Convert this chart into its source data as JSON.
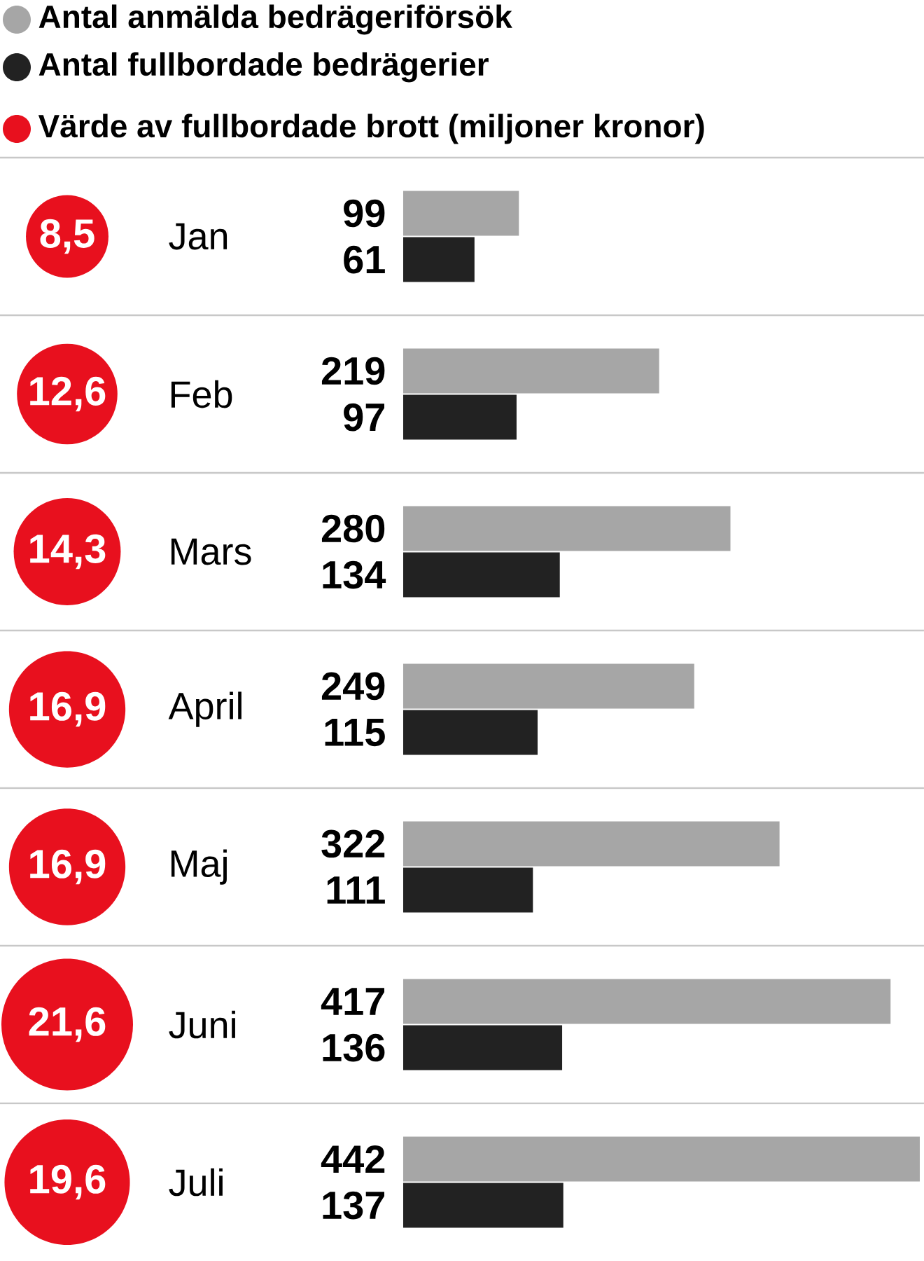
{
  "chart_data": [
    {
      "type": "bar",
      "orientation": "horizontal",
      "legend": "top",
      "data_labels": true,
      "categories": [
        "Jan",
        "Feb",
        "Mars",
        "April",
        "Maj",
        "Juni",
        "Juli"
      ],
      "series": [
        {
          "name": "Antal anmälda bedrägeriförsök",
          "color": "#a6a6a6",
          "values": [
            99,
            219,
            280,
            249,
            322,
            417,
            442
          ]
        },
        {
          "name": "Antal fullbordade bedrägerier",
          "color": "#222222",
          "values": [
            61,
            97,
            134,
            115,
            111,
            136,
            137
          ]
        }
      ]
    },
    {
      "type": "other",
      "series": [
        {
          "name": "Värde av fullbordade brott (miljoner kronor)",
          "color": "#e8101e",
          "values": [
            8.5,
            12.6,
            14.3,
            16.9,
            16.9,
            21.6,
            19.6
          ],
          "value_labels": [
            "8,5",
            "12,6",
            "14,3",
            "16,9",
            "16,9",
            "21,6",
            "19,6"
          ]
        }
      ]
    }
  ]
}
